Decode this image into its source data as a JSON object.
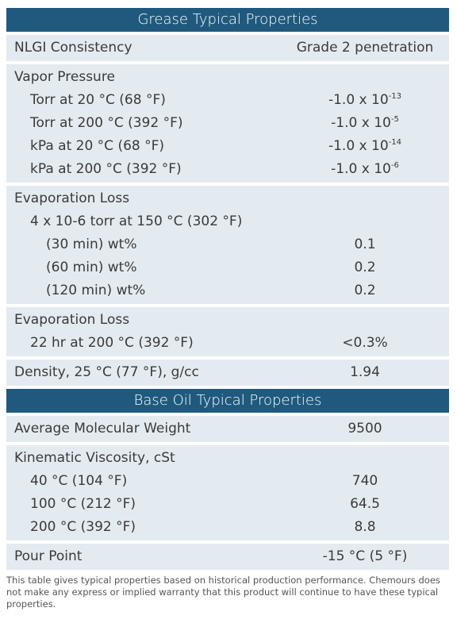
{
  "sections": [
    {
      "title": "Grease Typical Properties",
      "groups": [
        {
          "label": "NLGI Consistency",
          "value": "Grade 2 penetration"
        },
        {
          "label": "Vapor Pressure",
          "rows": [
            {
              "label": "Torr at 20 °C (68 °F)",
              "value": "-1.0 x 10",
              "exp": "-13"
            },
            {
              "label": "Torr at 200 °C (392 °F)",
              "value": "-1.0 x 10",
              "exp": "-5"
            },
            {
              "label": "kPa at 20 °C (68 °F)",
              "value": "-1.0 x 10",
              "exp": "-14"
            },
            {
              "label": "kPa at 200 °C (392 °F)",
              "value": "-1.0 x 10",
              "exp": "-6"
            }
          ]
        },
        {
          "label": "Evaporation Loss",
          "subheading": "4 x 10-6 torr at 150 °C (302 °F)",
          "rows": [
            {
              "label": "(30 min) wt%",
              "value": "0.1"
            },
            {
              "label": "(60 min) wt%",
              "value": "0.2"
            },
            {
              "label": "(120 min) wt%",
              "value": "0.2"
            }
          ]
        },
        {
          "label": "Evaporation Loss",
          "rows": [
            {
              "label": "22 hr at 200 °C (392 °F)",
              "value": "<0.3%"
            }
          ]
        },
        {
          "label": "Density, 25 °C (77 °F), g/cc",
          "value": "1.94"
        }
      ]
    },
    {
      "title": "Base Oil Typical Properties",
      "groups": [
        {
          "label": "Average Molecular Weight",
          "value": "9500"
        },
        {
          "label": "Kinematic Viscosity, cSt",
          "rows": [
            {
              "label": "40 °C (104 °F)",
              "value": "740"
            },
            {
              "label": "100 °C (212 °F)",
              "value": "64.5"
            },
            {
              "label": "200 °C (392 °F)",
              "value": "8.8"
            }
          ]
        },
        {
          "label": "Pour Point",
          "value": "-15 °C (5 °F)"
        }
      ]
    }
  ],
  "footnote": "This table gives typical properties based on historical production performance. Chemours does not make any express or implied warranty that this product will continue to have these typical properties."
}
